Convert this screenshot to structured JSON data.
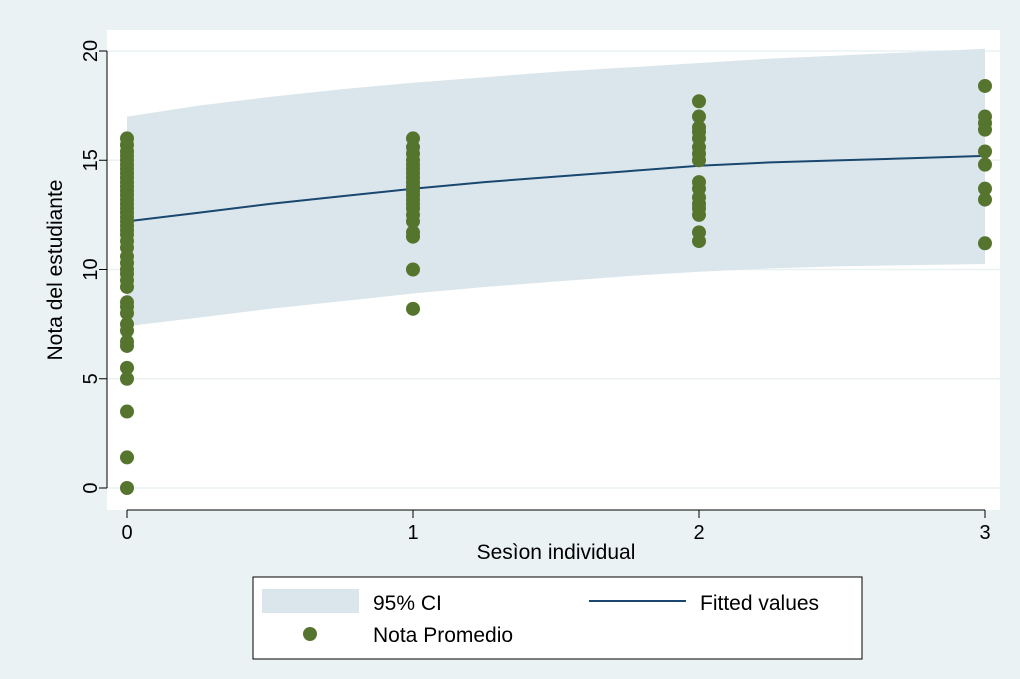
{
  "chart_data": {
    "type": "scatter",
    "title": "",
    "xlabel": "Sesìon individual",
    "ylabel": "Nota del estudiante",
    "xlim": [
      0,
      3
    ],
    "ylim": [
      0,
      20
    ],
    "x_ticks": [
      0,
      1,
      2,
      3
    ],
    "y_ticks": [
      0,
      5,
      10,
      15,
      20
    ],
    "grid": "horizontal",
    "legend_position": "bottom",
    "colors": {
      "outer_background": "#eaf2f3",
      "plot_background": "#ffffff",
      "ci_band": "#dbe6ec",
      "fitted_line": "#1a476f",
      "points": "#55752f",
      "grid": "#eaf2f3"
    },
    "series": [
      {
        "name": "95% CI",
        "kind": "band",
        "x": [
          0,
          0.25,
          0.5,
          0.75,
          1,
          1.25,
          1.5,
          1.75,
          2,
          2.25,
          2.5,
          2.75,
          3
        ],
        "lower": [
          7.4,
          7.8,
          8.2,
          8.55,
          8.9,
          9.2,
          9.45,
          9.7,
          9.9,
          10.05,
          10.15,
          10.2,
          10.25
        ],
        "upper": [
          17.0,
          17.5,
          17.9,
          18.25,
          18.55,
          18.8,
          19.05,
          19.25,
          19.45,
          19.65,
          19.8,
          19.95,
          20.1
        ]
      },
      {
        "name": "Fitted values",
        "kind": "line",
        "x": [
          0,
          0.25,
          0.5,
          0.75,
          1,
          1.25,
          1.5,
          1.75,
          2,
          2.25,
          2.5,
          2.75,
          3
        ],
        "y": [
          12.2,
          12.6,
          13.0,
          13.35,
          13.7,
          14.0,
          14.25,
          14.5,
          14.75,
          14.9,
          15.0,
          15.1,
          15.2
        ]
      },
      {
        "name": "Nota Promedio",
        "kind": "scatter",
        "points": [
          [
            0,
            0
          ],
          [
            0,
            1.4
          ],
          [
            0,
            3.5
          ],
          [
            0,
            5.0
          ],
          [
            0,
            5.5
          ],
          [
            0,
            6.5
          ],
          [
            0,
            6.7
          ],
          [
            0,
            7.2
          ],
          [
            0,
            7.5
          ],
          [
            0,
            8.0
          ],
          [
            0,
            8.3
          ],
          [
            0,
            8.5
          ],
          [
            0,
            9.2
          ],
          [
            0,
            9.5
          ],
          [
            0,
            9.8
          ],
          [
            0,
            10.0
          ],
          [
            0,
            10.3
          ],
          [
            0,
            10.6
          ],
          [
            0,
            11.0
          ],
          [
            0,
            11.3
          ],
          [
            0,
            11.6
          ],
          [
            0,
            11.8
          ],
          [
            0,
            12.0
          ],
          [
            0,
            12.2
          ],
          [
            0,
            12.4
          ],
          [
            0,
            12.6
          ],
          [
            0,
            12.8
          ],
          [
            0,
            13.0
          ],
          [
            0,
            13.2
          ],
          [
            0,
            13.4
          ],
          [
            0,
            13.6
          ],
          [
            0,
            13.8
          ],
          [
            0,
            14.0
          ],
          [
            0,
            14.2
          ],
          [
            0,
            14.4
          ],
          [
            0,
            14.6
          ],
          [
            0,
            14.8
          ],
          [
            0,
            15.0
          ],
          [
            0,
            15.2
          ],
          [
            0,
            15.4
          ],
          [
            0,
            15.7
          ],
          [
            0,
            16.0
          ],
          [
            1,
            8.2
          ],
          [
            1,
            10.0
          ],
          [
            1,
            11.5
          ],
          [
            1,
            11.7
          ],
          [
            1,
            12.2
          ],
          [
            1,
            12.5
          ],
          [
            1,
            12.8
          ],
          [
            1,
            13.0
          ],
          [
            1,
            13.2
          ],
          [
            1,
            13.4
          ],
          [
            1,
            13.6
          ],
          [
            1,
            13.8
          ],
          [
            1,
            14.0
          ],
          [
            1,
            14.2
          ],
          [
            1,
            14.4
          ],
          [
            1,
            14.6
          ],
          [
            1,
            14.8
          ],
          [
            1,
            15.0
          ],
          [
            1,
            15.3
          ],
          [
            1,
            15.6
          ],
          [
            1,
            16.0
          ],
          [
            2,
            11.3
          ],
          [
            2,
            11.7
          ],
          [
            2,
            12.5
          ],
          [
            2,
            12.8
          ],
          [
            2,
            13.0
          ],
          [
            2,
            13.3
          ],
          [
            2,
            13.7
          ],
          [
            2,
            14.0
          ],
          [
            2,
            15.0
          ],
          [
            2,
            15.3
          ],
          [
            2,
            15.6
          ],
          [
            2,
            16.0
          ],
          [
            2,
            16.3
          ],
          [
            2,
            16.5
          ],
          [
            2,
            17.0
          ],
          [
            2,
            17.7
          ],
          [
            3,
            11.2
          ],
          [
            3,
            13.2
          ],
          [
            3,
            13.7
          ],
          [
            3,
            14.8
          ],
          [
            3,
            15.4
          ],
          [
            3,
            16.4
          ],
          [
            3,
            16.7
          ],
          [
            3,
            17.0
          ],
          [
            3,
            18.4
          ]
        ]
      }
    ]
  }
}
